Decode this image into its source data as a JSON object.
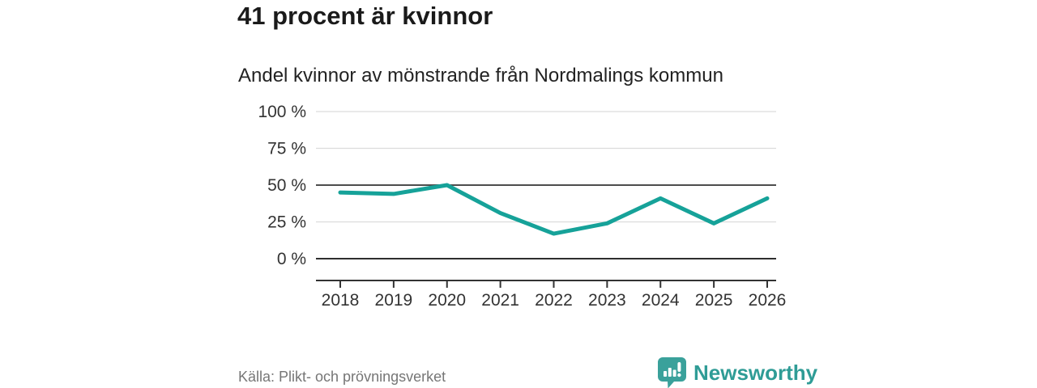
{
  "header": {
    "title": "41 procent är kvinnor",
    "subtitle": "Andel kvinnor av mönstrande från Nordmalings kommun"
  },
  "chart_data": {
    "type": "line",
    "categories": [
      "2018",
      "2019",
      "2020",
      "2021",
      "2022",
      "2023",
      "2024",
      "2025",
      "2026"
    ],
    "values": [
      45,
      44,
      50,
      31,
      17,
      24,
      41,
      24,
      41
    ],
    "title": "41 procent är kvinnor",
    "subtitle": "Andel kvinnor av mönstrande från Nordmalings kommun",
    "xlabel": "",
    "ylabel": "",
    "ylim": [
      0,
      100
    ],
    "y_ticks": [
      "100 %",
      "75 %",
      "50 %",
      "25 %",
      "0 %"
    ],
    "y_tick_values": [
      100,
      75,
      50,
      25,
      0
    ],
    "emphasized_gridlines": [
      50,
      0
    ],
    "grid": "horizontal",
    "legend_position": "none",
    "line_color": "#16a299"
  },
  "footer": {
    "source": "Källa: Plikt- och prövningsverket",
    "brand": "Newsworthy"
  },
  "icons": {
    "brand_logo": "speech-bubble-bar-chart-icon"
  },
  "colors": {
    "accent_line": "#16a299",
    "brand_teal": "#3aa19b",
    "brand_text": "#2f9c96",
    "text_dark": "#1a1a1a",
    "text_gray": "#767676",
    "grid_light": "#dcdcdc",
    "grid_dark_50": "#4d4d4d",
    "grid_dark_0": "#2e2e2e",
    "axis": "#333333"
  }
}
